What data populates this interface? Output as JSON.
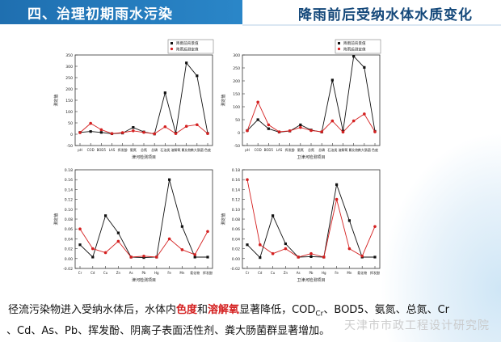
{
  "header": {
    "section_title": "四、治理初期雨水污染",
    "slide_title": "降雨前后受纳水体水质变化"
  },
  "legend": {
    "before": "降雨前背景值",
    "after": "降雨后测定值"
  },
  "colors": {
    "before": "#111111",
    "after": "#d42020",
    "header_blue": "#1f6fb0"
  },
  "caption": {
    "line1_a": "径流污染物进入受纳水体后，水体内",
    "line1_b": "色度",
    "line1_c": "和",
    "line1_d": "溶解氧",
    "line1_e": "显著降低，COD",
    "line1_sub": "Cr",
    "line1_f": "、BOD5、氨氮、总氮、Cr",
    "line2": "、Cd、As、Pb、挥发酚、阴离子表面活性剂、粪大肠菌群显著增加。"
  },
  "watermark": "天津市市政工程设计研究院",
  "chart_data": [
    {
      "type": "line",
      "ylabel": "测定值",
      "xlabel": "津河检测项目",
      "ylim": [
        -50,
        350
      ],
      "yticks": [
        -50,
        0,
        50,
        100,
        150,
        200,
        250,
        300,
        350
      ],
      "categories": [
        "pH",
        "COD",
        "BOD5",
        "LAS",
        "挥发酚",
        "氨氮",
        "总氮",
        "总磷",
        "石油类",
        "溶解氧",
        "氟化物",
        "粪大肠菌",
        "色度"
      ],
      "series": [
        {
          "name": "降雨前背景值",
          "values": [
            8,
            12,
            8,
            2,
            5,
            30,
            10,
            1,
            183,
            5,
            315,
            258,
            4
          ]
        },
        {
          "name": "降雨后测定值",
          "values": [
            7,
            48,
            20,
            3,
            7,
            15,
            8,
            2,
            33,
            3,
            35,
            42,
            3
          ]
        }
      ]
    },
    {
      "type": "line",
      "ylabel": "测定值",
      "xlabel": "卫津河检测项目",
      "ylim": [
        -50,
        300
      ],
      "yticks": [
        -50,
        0,
        50,
        100,
        150,
        200,
        250,
        300
      ],
      "categories": [
        "pH",
        "COD",
        "BOD5",
        "LAS",
        "挥发酚",
        "氨氮",
        "总氮",
        "总磷",
        "石油类",
        "溶解氧",
        "氟化物",
        "粪大肠菌",
        "色度"
      ],
      "series": [
        {
          "name": "降雨前背景值",
          "values": [
            8,
            50,
            15,
            2,
            6,
            30,
            10,
            2,
            203,
            6,
            295,
            252,
            5
          ]
        },
        {
          "name": "降雨后测定值",
          "values": [
            7,
            118,
            30,
            3,
            7,
            20,
            8,
            3,
            45,
            2,
            45,
            72,
            3
          ]
        }
      ]
    },
    {
      "type": "line",
      "ylabel": "测定值",
      "xlabel": "津河检测项目",
      "ylim": [
        -0.02,
        0.18
      ],
      "yticks": [
        -0.02,
        0.0,
        0.02,
        0.04,
        0.06,
        0.08,
        0.1,
        0.12,
        0.14,
        0.16,
        0.18
      ],
      "categories": [
        "Cr",
        "Cd",
        "Cu",
        "Zn",
        "As",
        "Pb",
        "Hg",
        "Fe",
        "Mn",
        "氰化物",
        "挥发酚"
      ],
      "series": [
        {
          "name": "降雨前背景值",
          "values": [
            0.028,
            0.003,
            0.087,
            0.052,
            0.003,
            0.002,
            0.003,
            0.16,
            0.065,
            0.003,
            0.003
          ]
        },
        {
          "name": "降雨后测定值",
          "values": [
            0.06,
            0.02,
            0.012,
            0.035,
            0.003,
            0.005,
            0.003,
            0.04,
            0.018,
            0.008,
            0.055
          ]
        }
      ]
    },
    {
      "type": "line",
      "ylabel": "测定值",
      "xlabel": "卫津河检测项目",
      "ylim": [
        -0.02,
        0.18
      ],
      "yticks": [
        -0.02,
        0.0,
        0.02,
        0.04,
        0.06,
        0.08,
        0.1,
        0.12,
        0.14,
        0.16,
        0.18
      ],
      "categories": [
        "Cr",
        "Cd",
        "Cu",
        "Zn",
        "As",
        "Pb",
        "Hg",
        "Fe",
        "Mn",
        "氰化物",
        "挥发酚"
      ],
      "series": [
        {
          "name": "降雨前背景值",
          "values": [
            0.028,
            0.002,
            0.087,
            0.03,
            0.003,
            0.004,
            0.003,
            0.15,
            0.077,
            0.003,
            0.003
          ]
        },
        {
          "name": "降雨后测定值",
          "values": [
            0.16,
            0.028,
            0.01,
            0.02,
            0.003,
            0.01,
            0.003,
            0.12,
            0.02,
            0.005,
            0.065
          ]
        }
      ]
    }
  ]
}
